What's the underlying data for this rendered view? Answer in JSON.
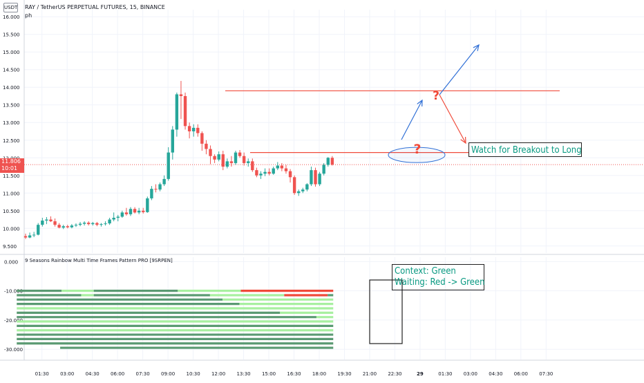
{
  "header": {
    "currency_badge": "USDT",
    "symbol_title": "RAY / TetherUS PERPETUAL FUTURES, 15, BINANCE",
    "sub_label": "ph"
  },
  "price_tag": {
    "price": "11.806",
    "countdown": "10:01",
    "color": "#ef5350"
  },
  "annotations": {
    "breakout_note": "Watch for Breakout to Long",
    "context_line": "Context: Green",
    "waiting_line": "Waiting: Red -> Green",
    "question_mark": "?"
  },
  "indicator": {
    "title": "9 Seasons Rainbow Multi Time Frames Pattern PRO [9SRPEN]"
  },
  "colors": {
    "up": "#26a69a",
    "down": "#ef5350",
    "dark_green": "#5a9a72",
    "light_green": "#a8f0a0",
    "red": "#f04a3a",
    "arrow_blue": "#2f6fd6",
    "line_red": "#f04a3a",
    "annotation_text": "#089981"
  },
  "chart_data": [
    {
      "type": "candlestick",
      "title": "RAY / TetherUS PERPETUAL FUTURES, 15, BINANCE",
      "y_ticks": [
        "16.000",
        "15.500",
        "15.000",
        "14.500",
        "14.000",
        "13.500",
        "13.000",
        "12.500",
        "12.000",
        "11.500",
        "11.000",
        "10.500",
        "10.000",
        "9.500"
      ],
      "ylim": [
        9.3,
        16.2
      ],
      "x_ticks": [
        "28",
        "01:30",
        "03:00",
        "04:30",
        "06:00",
        "07:30",
        "09:00",
        "10:30",
        "12:00",
        "13:30",
        "15:00",
        "16:30",
        "18:00",
        "19:30",
        "21:00",
        "22:30",
        "29",
        "01:30",
        "03:00",
        "04:30",
        "06:00",
        "07:30"
      ],
      "last_price": 11.806,
      "candles": [
        {
          "o": 9.78,
          "h": 9.85,
          "l": 9.7,
          "c": 9.74
        },
        {
          "o": 9.74,
          "h": 9.88,
          "l": 9.72,
          "c": 9.8
        },
        {
          "o": 9.8,
          "h": 9.9,
          "l": 9.75,
          "c": 9.82
        },
        {
          "o": 9.82,
          "h": 10.15,
          "l": 9.8,
          "c": 10.1
        },
        {
          "o": 10.1,
          "h": 10.3,
          "l": 10.05,
          "c": 10.22
        },
        {
          "o": 10.22,
          "h": 10.32,
          "l": 10.12,
          "c": 10.25
        },
        {
          "o": 10.25,
          "h": 10.34,
          "l": 10.18,
          "c": 10.2
        },
        {
          "o": 10.2,
          "h": 10.28,
          "l": 10.05,
          "c": 10.1
        },
        {
          "o": 10.1,
          "h": 10.15,
          "l": 10.0,
          "c": 10.02
        },
        {
          "o": 10.02,
          "h": 10.1,
          "l": 9.98,
          "c": 10.06
        },
        {
          "o": 10.06,
          "h": 10.1,
          "l": 10.0,
          "c": 10.03
        },
        {
          "o": 10.03,
          "h": 10.12,
          "l": 10.0,
          "c": 10.08
        },
        {
          "o": 10.08,
          "h": 10.14,
          "l": 10.04,
          "c": 10.1
        },
        {
          "o": 10.1,
          "h": 10.18,
          "l": 10.06,
          "c": 10.13
        },
        {
          "o": 10.13,
          "h": 10.2,
          "l": 10.08,
          "c": 10.16
        },
        {
          "o": 10.16,
          "h": 10.2,
          "l": 10.08,
          "c": 10.12
        },
        {
          "o": 10.12,
          "h": 10.18,
          "l": 10.08,
          "c": 10.15
        },
        {
          "o": 10.15,
          "h": 10.18,
          "l": 10.06,
          "c": 10.1
        },
        {
          "o": 10.1,
          "h": 10.15,
          "l": 10.05,
          "c": 10.12
        },
        {
          "o": 10.12,
          "h": 10.2,
          "l": 10.08,
          "c": 10.14
        },
        {
          "o": 10.14,
          "h": 10.3,
          "l": 10.1,
          "c": 10.25
        },
        {
          "o": 10.25,
          "h": 10.45,
          "l": 10.2,
          "c": 10.3
        },
        {
          "o": 10.3,
          "h": 10.38,
          "l": 10.2,
          "c": 10.33
        },
        {
          "o": 10.33,
          "h": 10.5,
          "l": 10.3,
          "c": 10.45
        },
        {
          "o": 10.45,
          "h": 10.58,
          "l": 10.36,
          "c": 10.4
        },
        {
          "o": 10.4,
          "h": 10.6,
          "l": 10.35,
          "c": 10.55
        },
        {
          "o": 10.55,
          "h": 10.6,
          "l": 10.42,
          "c": 10.45
        },
        {
          "o": 10.45,
          "h": 10.58,
          "l": 10.4,
          "c": 10.5
        },
        {
          "o": 10.5,
          "h": 10.58,
          "l": 10.42,
          "c": 10.46
        },
        {
          "o": 10.46,
          "h": 10.9,
          "l": 10.44,
          "c": 10.85
        },
        {
          "o": 10.85,
          "h": 11.2,
          "l": 10.8,
          "c": 11.12
        },
        {
          "o": 11.12,
          "h": 11.25,
          "l": 11.02,
          "c": 11.1
        },
        {
          "o": 11.1,
          "h": 11.3,
          "l": 11.05,
          "c": 11.25
        },
        {
          "o": 11.25,
          "h": 11.5,
          "l": 11.2,
          "c": 11.4
        },
        {
          "o": 11.4,
          "h": 12.3,
          "l": 11.35,
          "c": 12.15
        },
        {
          "o": 12.15,
          "h": 12.9,
          "l": 11.95,
          "c": 12.8
        },
        {
          "o": 12.8,
          "h": 13.85,
          "l": 12.6,
          "c": 13.8
        },
        {
          "o": 13.8,
          "h": 14.18,
          "l": 13.1,
          "c": 13.75
        },
        {
          "o": 13.75,
          "h": 13.85,
          "l": 12.8,
          "c": 12.9
        },
        {
          "o": 12.9,
          "h": 13.0,
          "l": 12.55,
          "c": 12.75
        },
        {
          "o": 12.75,
          "h": 12.95,
          "l": 12.6,
          "c": 12.85
        },
        {
          "o": 12.85,
          "h": 12.95,
          "l": 12.6,
          "c": 12.7
        },
        {
          "o": 12.7,
          "h": 12.75,
          "l": 12.2,
          "c": 12.4
        },
        {
          "o": 12.4,
          "h": 12.5,
          "l": 12.1,
          "c": 12.25
        },
        {
          "o": 12.25,
          "h": 12.35,
          "l": 11.82,
          "c": 12.05
        },
        {
          "o": 12.05,
          "h": 12.1,
          "l": 11.85,
          "c": 11.95
        },
        {
          "o": 11.95,
          "h": 12.18,
          "l": 11.9,
          "c": 12.1
        },
        {
          "o": 12.1,
          "h": 12.2,
          "l": 11.65,
          "c": 11.75
        },
        {
          "o": 11.75,
          "h": 11.98,
          "l": 11.7,
          "c": 11.9
        },
        {
          "o": 11.9,
          "h": 12.05,
          "l": 11.75,
          "c": 11.85
        },
        {
          "o": 11.85,
          "h": 12.2,
          "l": 11.8,
          "c": 12.15
        },
        {
          "o": 12.15,
          "h": 12.22,
          "l": 12.0,
          "c": 12.05
        },
        {
          "o": 12.05,
          "h": 12.15,
          "l": 11.78,
          "c": 11.85
        },
        {
          "o": 11.85,
          "h": 11.98,
          "l": 11.75,
          "c": 11.9
        },
        {
          "o": 11.9,
          "h": 11.98,
          "l": 11.6,
          "c": 11.65
        },
        {
          "o": 11.65,
          "h": 11.72,
          "l": 11.45,
          "c": 11.5
        },
        {
          "o": 11.5,
          "h": 11.62,
          "l": 11.4,
          "c": 11.55
        },
        {
          "o": 11.55,
          "h": 11.7,
          "l": 11.48,
          "c": 11.6
        },
        {
          "o": 11.6,
          "h": 11.7,
          "l": 11.5,
          "c": 11.55
        },
        {
          "o": 11.55,
          "h": 11.75,
          "l": 11.52,
          "c": 11.7
        },
        {
          "o": 11.7,
          "h": 11.88,
          "l": 11.65,
          "c": 11.78
        },
        {
          "o": 11.78,
          "h": 11.85,
          "l": 11.62,
          "c": 11.7
        },
        {
          "o": 11.7,
          "h": 11.8,
          "l": 11.55,
          "c": 11.62
        },
        {
          "o": 11.62,
          "h": 11.68,
          "l": 11.3,
          "c": 11.45
        },
        {
          "o": 11.45,
          "h": 11.5,
          "l": 10.95,
          "c": 11.0
        },
        {
          "o": 11.0,
          "h": 11.1,
          "l": 10.92,
          "c": 11.05
        },
        {
          "o": 11.05,
          "h": 11.15,
          "l": 11.0,
          "c": 11.1
        },
        {
          "o": 11.1,
          "h": 11.28,
          "l": 11.05,
          "c": 11.25
        },
        {
          "o": 11.25,
          "h": 11.75,
          "l": 11.2,
          "c": 11.65
        },
        {
          "o": 11.65,
          "h": 11.72,
          "l": 11.18,
          "c": 11.25
        },
        {
          "o": 11.25,
          "h": 11.6,
          "l": 11.2,
          "c": 11.55
        },
        {
          "o": 11.55,
          "h": 11.85,
          "l": 11.5,
          "c": 11.8
        },
        {
          "o": 11.8,
          "h": 12.02,
          "l": 11.75,
          "c": 12.0
        },
        {
          "o": 12.0,
          "h": 12.05,
          "l": 11.78,
          "c": 11.806
        }
      ]
    },
    {
      "type": "bar",
      "title": "9 Seasons Rainbow Multi Time Frames Pattern PRO [9SRPEN]",
      "y_ticks": [
        "0.000",
        "-10.000",
        "-20.000",
        "-30.000"
      ],
      "ylim": [
        -33.5,
        1.5
      ],
      "x_ticks": [
        "28",
        "01:30",
        "03:00",
        "04:30",
        "06:00",
        "07:30",
        "09:00",
        "10:30",
        "12:00",
        "13:30",
        "15:00",
        "16:30",
        "18:00",
        "19:30",
        "21:00",
        "22:30",
        "29",
        "01:30",
        "03:00",
        "04:30",
        "06:00",
        "07:30"
      ],
      "x_range": [
        "28",
        "19:00"
      ],
      "rows": [
        {
          "level": -10,
          "segments": [
            {
              "start": "28",
              "end": "02:40",
              "color": "dark_green"
            },
            {
              "start": "02:40",
              "end": "04:35",
              "color": "light_green"
            },
            {
              "start": "04:35",
              "end": "09:35",
              "color": "dark_green"
            },
            {
              "start": "09:35",
              "end": "13:20",
              "color": "light_green"
            },
            {
              "start": "13:20",
              "end": "18:50",
              "color": "red"
            }
          ]
        },
        {
          "level": -11.5,
          "segments": [
            {
              "start": "28",
              "end": "03:50",
              "color": "dark_green"
            },
            {
              "start": "03:50",
              "end": "04:35",
              "color": "light_green"
            },
            {
              "start": "04:35",
              "end": "11:30",
              "color": "dark_green"
            },
            {
              "start": "11:30",
              "end": "15:55",
              "color": "light_green"
            },
            {
              "start": "15:55",
              "end": "18:30",
              "color": "red"
            },
            {
              "start": "18:30",
              "end": "18:50",
              "color": "dark_green"
            }
          ]
        },
        {
          "level": -13,
          "segments": [
            {
              "start": "28",
              "end": "12:15",
              "color": "dark_green"
            },
            {
              "start": "12:15",
              "end": "18:50",
              "color": "light_green"
            }
          ]
        },
        {
          "level": -14.5,
          "segments": [
            {
              "start": "28",
              "end": "13:15",
              "color": "dark_green"
            },
            {
              "start": "13:15",
              "end": "18:50",
              "color": "light_green"
            }
          ]
        },
        {
          "level": -16,
          "segments": [
            {
              "start": "28",
              "end": "18:50",
              "color": "light_green"
            }
          ]
        },
        {
          "level": -17.5,
          "segments": [
            {
              "start": "28",
              "end": "15:40",
              "color": "dark_green"
            },
            {
              "start": "15:40",
              "end": "18:50",
              "color": "light_green"
            }
          ]
        },
        {
          "level": -19,
          "segments": [
            {
              "start": "28",
              "end": "17:50",
              "color": "dark_green"
            },
            {
              "start": "17:50",
              "end": "18:50",
              "color": "light_green"
            }
          ]
        },
        {
          "level": -20.5,
          "segments": [
            {
              "start": "28",
              "end": "18:50",
              "color": "light_green"
            }
          ]
        },
        {
          "level": -22,
          "segments": [
            {
              "start": "28",
              "end": "18:50",
              "color": "dark_green"
            }
          ]
        },
        {
          "level": -23.5,
          "segments": [
            {
              "start": "28",
              "end": "18:50",
              "color": "light_green"
            }
          ]
        },
        {
          "level": -25,
          "segments": [
            {
              "start": "28",
              "end": "18:50",
              "color": "dark_green"
            }
          ]
        },
        {
          "level": -26.5,
          "segments": [
            {
              "start": "28",
              "end": "18:50",
              "color": "dark_green"
            }
          ]
        },
        {
          "level": -28,
          "segments": [
            {
              "start": "28",
              "end": "18:50",
              "color": "dark_green"
            }
          ]
        },
        {
          "level": -29.5,
          "segments": [
            {
              "start": "02:35",
              "end": "18:50",
              "color": "dark_green"
            }
          ]
        }
      ]
    }
  ]
}
